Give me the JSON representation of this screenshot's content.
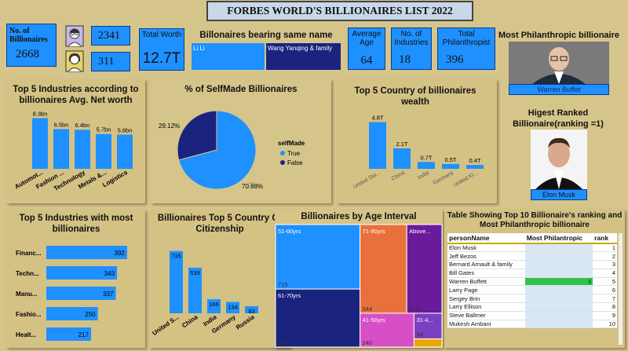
{
  "title": "FORBES WORLD'S BILLIONAIRES LIST 2022",
  "kpi": {
    "no_billionaires_label": "No. of Billionaires",
    "no_billionaires_value": "2668",
    "male_count": "2341",
    "female_count": "311",
    "total_worth_label": "Total Worth",
    "total_worth_value": "12.7T",
    "same_name_title": "Billonaires bearing same name",
    "same_name_1": "Li Li",
    "same_name_2": "Wang Yanqing & family",
    "avg_age_label": "Average Age",
    "avg_age_value": "64",
    "industries_label": "No. of Industries",
    "industries_value": "18",
    "philanthropist_label": "Total Philanthropist",
    "philanthropist_value": "396"
  },
  "philanthropic": {
    "title": "Most Philanthropic billionaire",
    "name": "Warren Buffet"
  },
  "ranked": {
    "title": "Higest Ranked Billionaire(ranking =1)",
    "name": "Elon Musk"
  },
  "colors": {
    "bar": "#1e90ff",
    "pie_true": "#1e90ff",
    "pie_false": "#1a237e",
    "tm_51_60": "#1e90ff",
    "tm_61_70": "#1a237e",
    "tm_71_80": "#e8703a",
    "tm_above": "#6a1b9a",
    "tm_41_50": "#d64fc6",
    "tm_31_40": "#7b3fbf",
    "tm_small": "#e8a800"
  },
  "charts": {
    "industries_networth": {
      "title": "Top 5 Industries according to billionaires Avg. Net worth"
    },
    "selfmade": {
      "title": "% of SelfMade Billionaires",
      "legend_title": "selfMade"
    },
    "country_wealth": {
      "title": "Top 5 Country of billionaires wealth"
    },
    "industries_count": {
      "title": "Top 5 Industries with most billionaires"
    },
    "citizenship": {
      "title": "Billionaires Top 5 Country Of Citizenship"
    },
    "age_interval": {
      "title": "Billionaires by Age Interval"
    }
  },
  "table": {
    "title": "Table Showing Top 10 Billionaire's ranking and Most Philanthropic billionaire",
    "columns": [
      "personName",
      "Most Philantropic",
      "rank"
    ],
    "rows": [
      {
        "name": "Elon Musk",
        "phil": "",
        "rank": "1"
      },
      {
        "name": "Jeff Bezos",
        "phil": "",
        "rank": "2"
      },
      {
        "name": "Bernard Arnault & family",
        "phil": "",
        "rank": "3"
      },
      {
        "name": "Bill Gates",
        "phil": "",
        "rank": "4"
      },
      {
        "name": "Warren Buffett",
        "phil": "1",
        "rank": "5"
      },
      {
        "name": "Larry Page",
        "phil": "",
        "rank": "6"
      },
      {
        "name": "Sergey Brin",
        "phil": "",
        "rank": "7"
      },
      {
        "name": "Larry Ellison",
        "phil": "",
        "rank": "8"
      },
      {
        "name": "Steve Ballmer",
        "phil": "",
        "rank": "9"
      },
      {
        "name": "Mukesh Ambani",
        "phil": "",
        "rank": "10"
      }
    ]
  },
  "chart_data": [
    {
      "type": "bar",
      "title": "Top 5 Industries according to billionaires Avg. Net worth",
      "categories": [
        "Automot...",
        "Fashion ...",
        "Technology",
        "Metals &...",
        "Logistics"
      ],
      "values": [
        8.3,
        6.5,
        6.4,
        5.7,
        5.6
      ],
      "data_labels": [
        "8.3bn",
        "6.5bn",
        "6.4bn",
        "5.7bn",
        "5.6bn"
      ]
    },
    {
      "type": "pie",
      "title": "% of SelfMade Billionaires",
      "legend_title": "selfMade",
      "labels": [
        "True",
        "False"
      ],
      "values": [
        70.88,
        29.12
      ],
      "data_labels": [
        "70.88%",
        "29.12%"
      ],
      "legend": "right"
    },
    {
      "type": "bar",
      "title": "Top 5 Country of billionaires wealth",
      "categories": [
        "United Sta...",
        "China",
        "India",
        "Germany",
        "United Ki..."
      ],
      "values": [
        4.8,
        2.1,
        0.7,
        0.5,
        0.4
      ],
      "data_labels": [
        "4.8T",
        "2.1T",
        "0.7T",
        "0.5T",
        "0.4T"
      ]
    },
    {
      "type": "bar",
      "orientation": "horizontal",
      "title": "Top 5 Industries with most billionaires",
      "categories": [
        "Financ...",
        "Techn...",
        "Manu...",
        "Fashio...",
        "Healt..."
      ],
      "values": [
        392,
        343,
        337,
        250,
        217
      ]
    },
    {
      "type": "bar",
      "title": "Billionaires Top 5 Country Of Citizenship",
      "categories": [
        "United S...",
        "China",
        "India",
        "Germany",
        "Russia"
      ],
      "values": [
        735,
        539,
        166,
        134,
        83
      ]
    },
    {
      "type": "heatmap",
      "subtype": "treemap",
      "title": "Billionaires by Age Interval",
      "labels": [
        "51-60yrs",
        "61-70yrs",
        "71-80yrs",
        "Above...",
        "41-50yrs",
        "31-4...",
        ""
      ],
      "values": [
        715,
        644,
        544,
        410,
        240,
        94,
        30
      ],
      "value_labels": [
        "715",
        "644",
        "544",
        "410",
        "240",
        "94",
        ""
      ]
    }
  ]
}
